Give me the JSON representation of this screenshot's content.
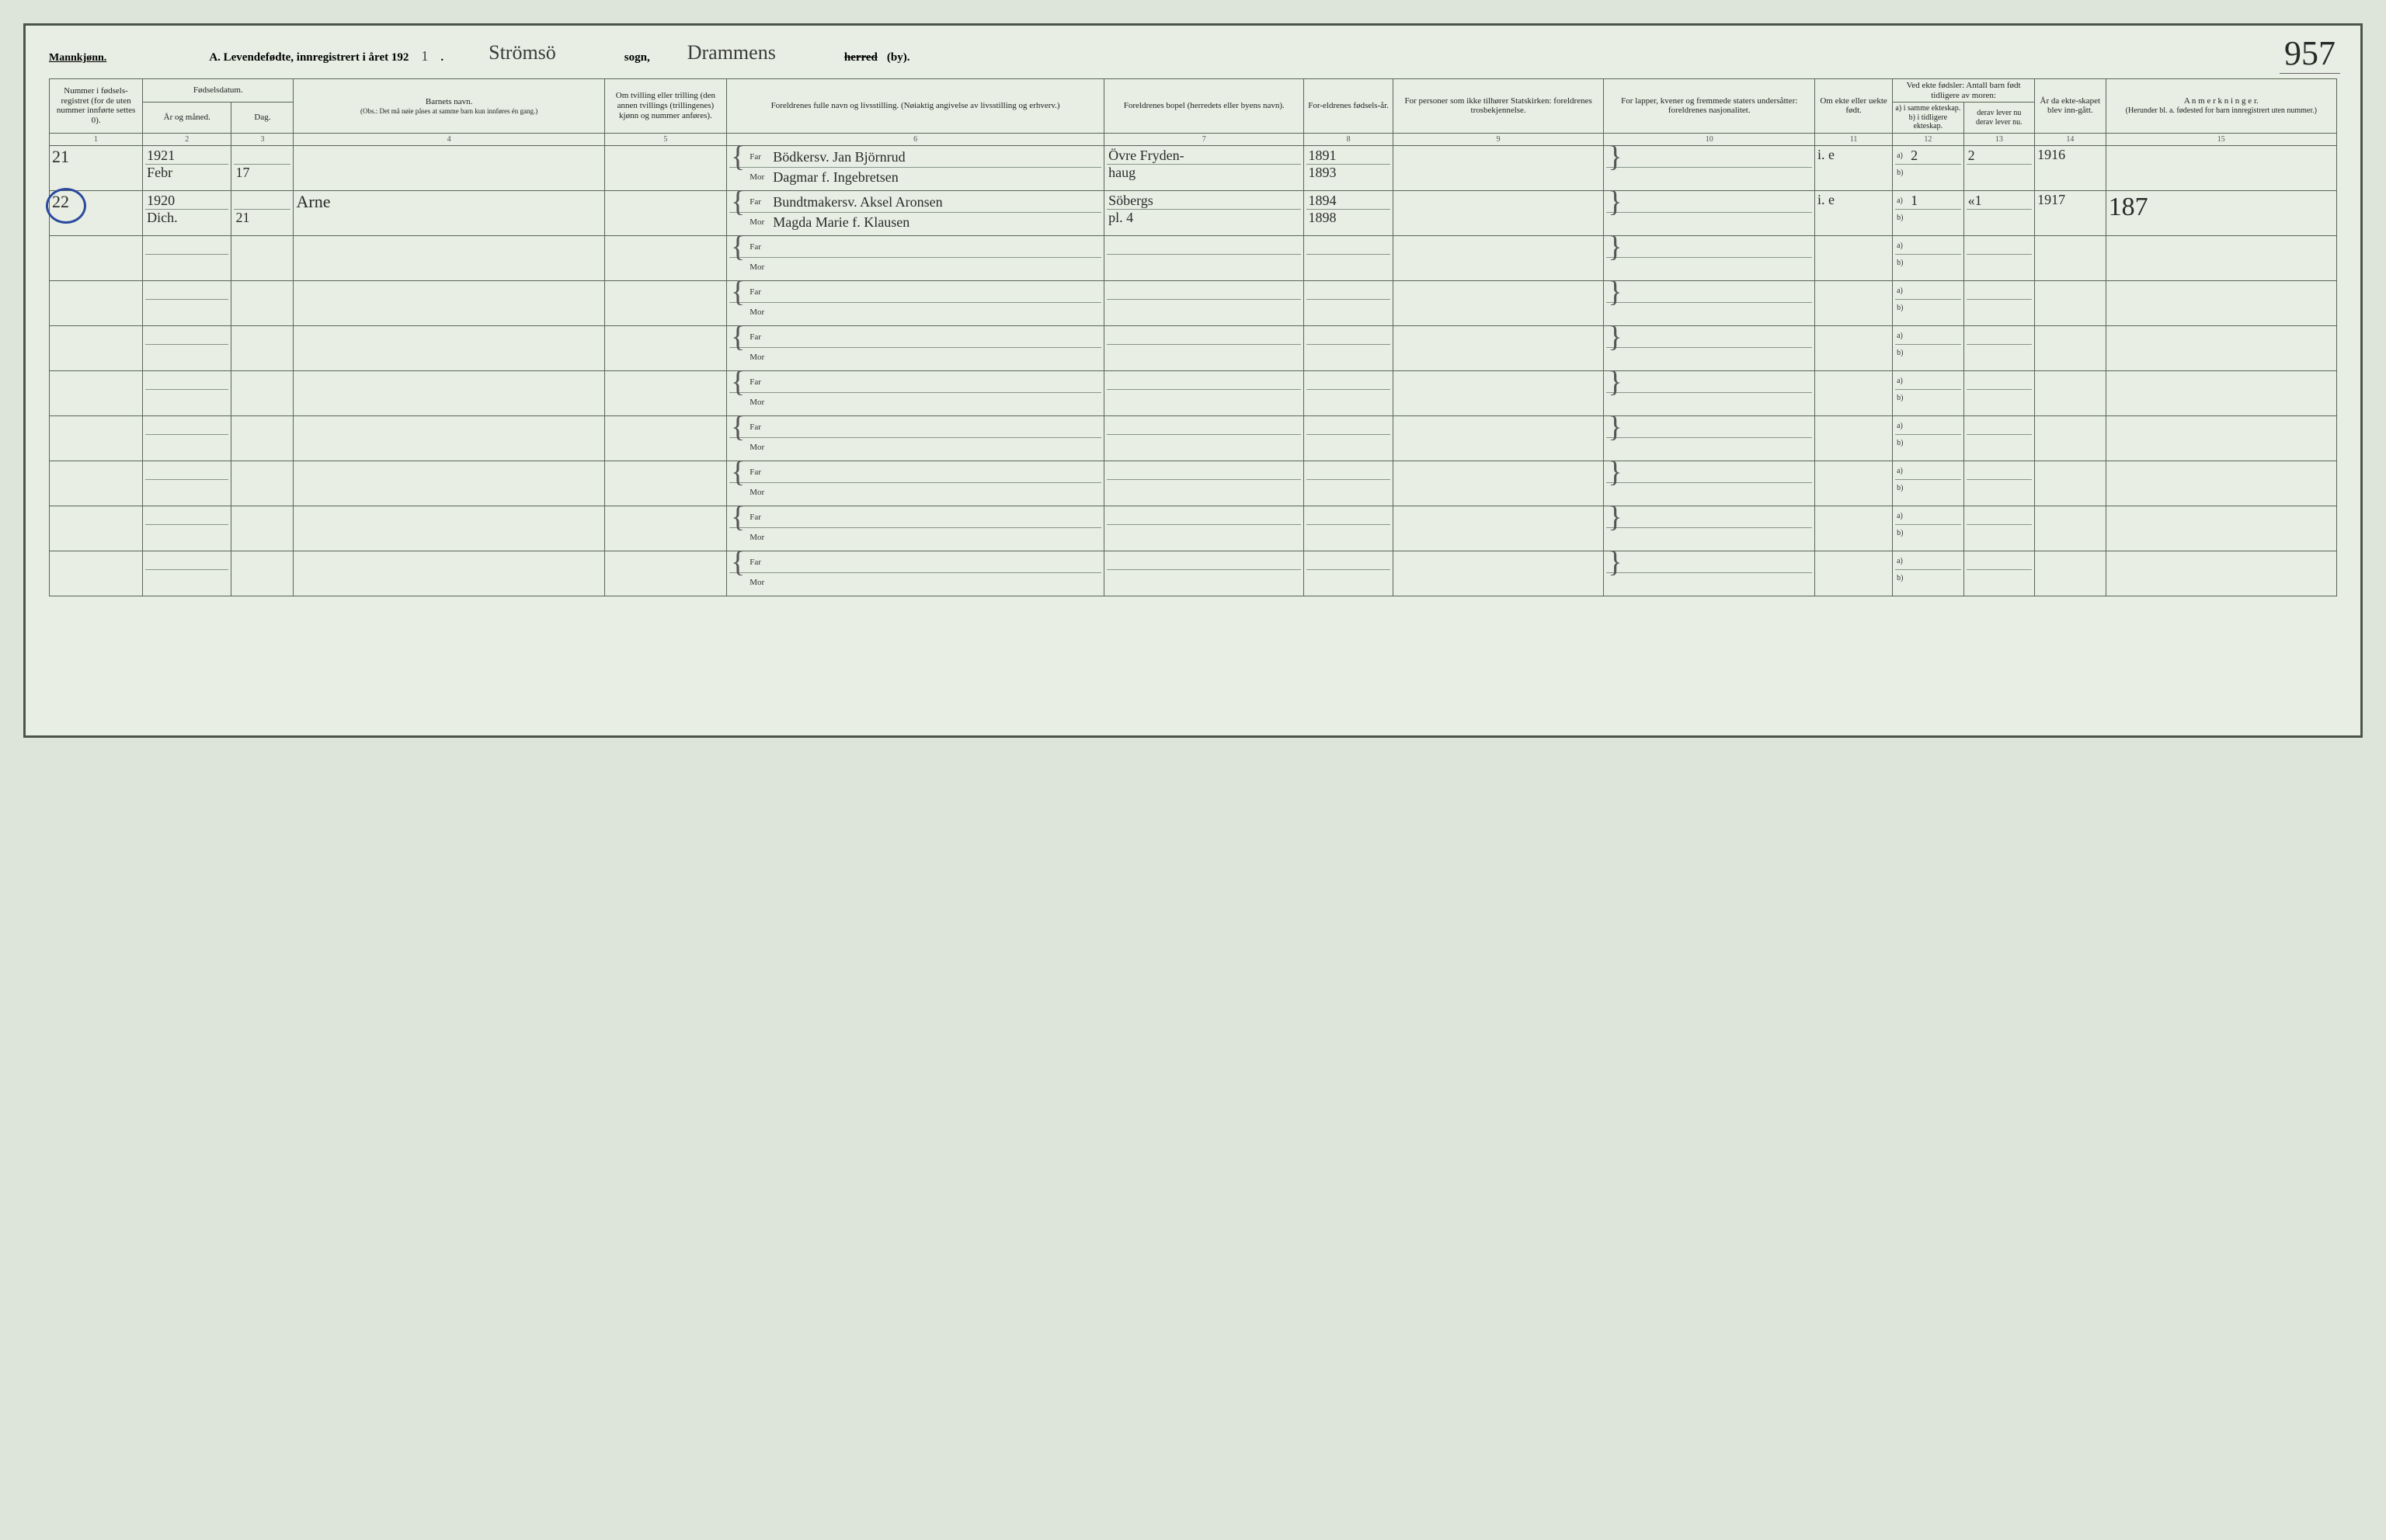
{
  "header": {
    "mannkjonn": "Mannkjønn.",
    "title_print": "A.  Levendefødte, innregistrert i året 192",
    "year_digit": "1",
    "parish_script": "Strömsö",
    "sogn_label": "sogn,",
    "district_script": "Drammens",
    "herred_strike": "herred",
    "by_label": "(by).",
    "page_number": "957"
  },
  "columns": {
    "c1": "Nummer i fødsels-registret (for de uten nummer innførte settes 0).",
    "c2_top": "Fødselsdatum.",
    "c2_a": "År og måned.",
    "c2_b": "Dag.",
    "c4_top": "Barnets navn.",
    "c4_obs": "(Obs.: Det må nøie påses at samme barn kun innføres én gang.)",
    "c5": "Om tvilling eller trilling (den annen tvillings (trillingenes) kjønn og nummer anføres).",
    "c6": "Foreldrenes fulle navn og livsstilling. (Nøiaktig angivelse av livsstilling og erhverv.)",
    "c7": "Foreldrenes bopel (herredets eller byens navn).",
    "c8": "For-eldrenes fødsels-år.",
    "c9": "For personer som ikke tilhører Statskirken: foreldrenes trosbekjennelse.",
    "c10": "For lapper, kvener og fremmede staters undersåtter: foreldrenes nasjonalitet.",
    "c11": "Om ekte eller uekte født.",
    "c12_top": "Ved ekte fødsler: Antall barn født tidligere av moren:",
    "c12_a": "a) i samme ekteskap.",
    "c12_b": "b) i tidligere ekteskap.",
    "c13_a": "derav lever nu",
    "c13_b": "derav lever nu.",
    "c14": "År da ekte-skapet blev inn-gått.",
    "c15_top": "A n m e r k n i n g e r.",
    "c15_sub": "(Herunder bl. a. fødested for barn innregistrert uten nummer.)"
  },
  "colnums": [
    "1",
    "2",
    "3",
    "4",
    "5",
    "6",
    "7",
    "8",
    "9",
    "10",
    "11",
    "12",
    "13",
    "14",
    "15"
  ],
  "role_labels": {
    "far": "Far",
    "mor": "Mor",
    "a": "a)",
    "b": "b)"
  },
  "rows": [
    {
      "num": "21",
      "year": "1921",
      "month": "Febr",
      "day": "17",
      "child": "",
      "occ_top": "Bödkersv.",
      "far": "Jan Björnrud",
      "mor": "Dagmar f. Ingebretsen",
      "bopel_top": "Övre Fryden-",
      "bopel_bot": "haug",
      "far_year": "1891",
      "mor_year": "1893",
      "ekte": "i. e",
      "a_same": "2",
      "a_lever": "2",
      "year_married": "1916",
      "remark": ""
    },
    {
      "num": "22",
      "circled": true,
      "year": "1920",
      "month": "Dich.",
      "day": "21",
      "child": "Arne",
      "occ_top": "",
      "far": "Bundtmakersv. Aksel Aronsen",
      "mor": "Magda Marie f. Klausen",
      "bopel_top": "Söbergs",
      "bopel_bot": "pl. 4",
      "far_year": "1894",
      "mor_year": "1898",
      "ekte": "i. e",
      "a_same": "1",
      "a_lever": "«1",
      "year_married": "1917",
      "remark": "187"
    }
  ],
  "empty_row_count": 8,
  "colwidths_pct": [
    4.2,
    4.0,
    2.8,
    14.0,
    5.5,
    17.0,
    9.0,
    4.0,
    9.5,
    9.5,
    3.5,
    3.2,
    3.2,
    3.2,
    10.4
  ],
  "colors": {
    "page_bg": "#e8eee3",
    "outer_bg": "#dde5da",
    "line": "#5a6458",
    "ink": "#2a2a2a",
    "circle": "#2b4aa0"
  }
}
